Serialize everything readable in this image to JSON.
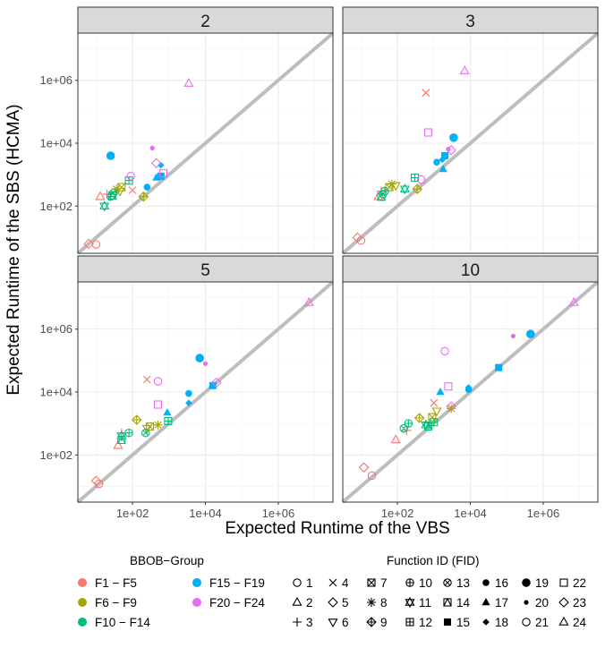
{
  "chart_data": {
    "type": "scatter",
    "xlabel": "Expected Runtime of the VBS",
    "ylabel": "Expected Runtime of the SBS (HCMA)",
    "x_log10_range": [
      0.5,
      7.5
    ],
    "y_log10_range": [
      0.5,
      7.5
    ],
    "x_ticks": [
      "1e+02",
      "1e+04",
      "1e+06"
    ],
    "y_ticks": [
      "1e+02",
      "1e+04",
      "1e+06"
    ],
    "group_colors": {
      "F1-F5": "#F8766D",
      "F6-F9": "#A3A500",
      "F10-F14": "#00BF7D",
      "F15-F19": "#00B0F6",
      "F20-F24": "#E76BF3"
    },
    "legend_groups": {
      "title": "BBOB−Group",
      "items": [
        {
          "label": "F1 − F5",
          "color": "#F8766D"
        },
        {
          "label": "F6 − F9",
          "color": "#A3A500"
        },
        {
          "label": "F10 − F14",
          "color": "#00BF7D"
        },
        {
          "label": "F15 − F19",
          "color": "#00B0F6"
        },
        {
          "label": "F20 − F24",
          "color": "#E76BF3"
        }
      ]
    },
    "legend_fids": {
      "title": "Function ID (FID)",
      "items": [
        {
          "label": "1",
          "shape": "circle-open"
        },
        {
          "label": "2",
          "shape": "triangle-open"
        },
        {
          "label": "3",
          "shape": "plus"
        },
        {
          "label": "4",
          "shape": "cross"
        },
        {
          "label": "5",
          "shape": "diamond-open"
        },
        {
          "label": "6",
          "shape": "triangle-down-open"
        },
        {
          "label": "7",
          "shape": "square-cross"
        },
        {
          "label": "8",
          "shape": "asterisk"
        },
        {
          "label": "9",
          "shape": "diamond-plus"
        },
        {
          "label": "10",
          "shape": "circle-plus"
        },
        {
          "label": "11",
          "shape": "star-of-david"
        },
        {
          "label": "12",
          "shape": "square-plus"
        },
        {
          "label": "13",
          "shape": "circle-cross"
        },
        {
          "label": "14",
          "shape": "square-triangle"
        },
        {
          "label": "15",
          "shape": "square-filled"
        },
        {
          "label": "16",
          "shape": "circle-filled"
        },
        {
          "label": "17",
          "shape": "triangle-filled"
        },
        {
          "label": "18",
          "shape": "diamond-filled"
        },
        {
          "label": "19",
          "shape": "circle-big-filled"
        },
        {
          "label": "20",
          "shape": "circle-small-filled"
        },
        {
          "label": "21",
          "shape": "circle-open"
        },
        {
          "label": "22",
          "shape": "square-open"
        },
        {
          "label": "23",
          "shape": "diamond-open"
        },
        {
          "label": "24",
          "shape": "triangle-open"
        }
      ]
    },
    "panels": [
      {
        "label": "2",
        "points": [
          {
            "fid": 1,
            "x": 10,
            "y": 6
          },
          {
            "fid": 5,
            "x": 6.3,
            "y": 6.3
          },
          {
            "fid": 2,
            "x": 13,
            "y": 200
          },
          {
            "fid": 3,
            "x": 20,
            "y": 240
          },
          {
            "fid": 4,
            "x": 100,
            "y": 320
          },
          {
            "fid": 6,
            "x": 45,
            "y": 300
          },
          {
            "fid": 7,
            "x": 50,
            "y": 400
          },
          {
            "fid": 8,
            "x": 36,
            "y": 350
          },
          {
            "fid": 9,
            "x": 200,
            "y": 200
          },
          {
            "fid": 10,
            "x": 25,
            "y": 200
          },
          {
            "fid": 11,
            "x": 17,
            "y": 100
          },
          {
            "fid": 12,
            "x": 80,
            "y": 650
          },
          {
            "fid": 13,
            "x": 30,
            "y": 260
          },
          {
            "fid": 14,
            "x": 28,
            "y": 220
          },
          {
            "fid": 15,
            "x": 600,
            "y": 900
          },
          {
            "fid": 16,
            "x": 250,
            "y": 400
          },
          {
            "fid": 17,
            "x": 450,
            "y": 800
          },
          {
            "fid": 18,
            "x": 600,
            "y": 2000
          },
          {
            "fid": 19,
            "x": 25,
            "y": 4000
          },
          {
            "fid": 20,
            "x": 350,
            "y": 7000
          },
          {
            "fid": 21,
            "x": 90,
            "y": 900
          },
          {
            "fid": 22,
            "x": 700,
            "y": 1100
          },
          {
            "fid": 23,
            "x": 450,
            "y": 2300
          },
          {
            "fid": 24,
            "x": 3500,
            "y": 800000
          }
        ]
      },
      {
        "label": "3",
        "points": [
          {
            "fid": 1,
            "x": 10,
            "y": 8
          },
          {
            "fid": 5,
            "x": 8,
            "y": 10
          },
          {
            "fid": 2,
            "x": 30,
            "y": 200
          },
          {
            "fid": 3,
            "x": 36,
            "y": 300
          },
          {
            "fid": 4,
            "x": 600,
            "y": 400000
          },
          {
            "fid": 6,
            "x": 90,
            "y": 450
          },
          {
            "fid": 7,
            "x": 60,
            "y": 400
          },
          {
            "fid": 8,
            "x": 70,
            "y": 500
          },
          {
            "fid": 9,
            "x": 350,
            "y": 350
          },
          {
            "fid": 10,
            "x": 45,
            "y": 300
          },
          {
            "fid": 11,
            "x": 160,
            "y": 350
          },
          {
            "fid": 12,
            "x": 300,
            "y": 800
          },
          {
            "fid": 13,
            "x": 40,
            "y": 240
          },
          {
            "fid": 14,
            "x": 36,
            "y": 200
          },
          {
            "fid": 15,
            "x": 2000,
            "y": 4000
          },
          {
            "fid": 16,
            "x": 1200,
            "y": 2500
          },
          {
            "fid": 17,
            "x": 1800,
            "y": 1500
          },
          {
            "fid": 18,
            "x": 1700,
            "y": 3000
          },
          {
            "fid": 19,
            "x": 3500,
            "y": 15000
          },
          {
            "fid": 20,
            "x": 2500,
            "y": 6500
          },
          {
            "fid": 21,
            "x": 450,
            "y": 700
          },
          {
            "fid": 22,
            "x": 700,
            "y": 22000
          },
          {
            "fid": 23,
            "x": 3000,
            "y": 6000
          },
          {
            "fid": 24,
            "x": 7000,
            "y": 2000000
          }
        ]
      },
      {
        "label": "5",
        "points": [
          {
            "fid": 1,
            "x": 12,
            "y": 12
          },
          {
            "fid": 5,
            "x": 10,
            "y": 15
          },
          {
            "fid": 2,
            "x": 40,
            "y": 200
          },
          {
            "fid": 3,
            "x": 50,
            "y": 500
          },
          {
            "fid": 4,
            "x": 250,
            "y": 25000
          },
          {
            "fid": 6,
            "x": 250,
            "y": 700
          },
          {
            "fid": 7,
            "x": 300,
            "y": 800
          },
          {
            "fid": 8,
            "x": 500,
            "y": 900
          },
          {
            "fid": 9,
            "x": 130,
            "y": 1300
          },
          {
            "fid": 10,
            "x": 80,
            "y": 500
          },
          {
            "fid": 11,
            "x": 50,
            "y": 400
          },
          {
            "fid": 12,
            "x": 950,
            "y": 1200
          },
          {
            "fid": 13,
            "x": 230,
            "y": 500
          },
          {
            "fid": 14,
            "x": 50,
            "y": 300
          },
          {
            "fid": 15,
            "x": 16000,
            "y": 16000
          },
          {
            "fid": 16,
            "x": 3500,
            "y": 9000
          },
          {
            "fid": 17,
            "x": 900,
            "y": 2200
          },
          {
            "fid": 18,
            "x": 3500,
            "y": 4500
          },
          {
            "fid": 19,
            "x": 7000,
            "y": 120000
          },
          {
            "fid": 20,
            "x": 10000,
            "y": 80000
          },
          {
            "fid": 21,
            "x": 500,
            "y": 22000
          },
          {
            "fid": 22,
            "x": 500,
            "y": 4000
          },
          {
            "fid": 23,
            "x": 20000,
            "y": 20000
          },
          {
            "fid": 24,
            "x": 7000000,
            "y": 7000000
          }
        ]
      },
      {
        "label": "10",
        "points": [
          {
            "fid": 1,
            "x": 20,
            "y": 22
          },
          {
            "fid": 5,
            "x": 12,
            "y": 40
          },
          {
            "fid": 2,
            "x": 90,
            "y": 300
          },
          {
            "fid": 3,
            "x": 180,
            "y": 600
          },
          {
            "fid": 4,
            "x": 1000,
            "y": 4500
          },
          {
            "fid": 6,
            "x": 1200,
            "y": 2500
          },
          {
            "fid": 7,
            "x": 900,
            "y": 1600
          },
          {
            "fid": 8,
            "x": 3000,
            "y": 3000
          },
          {
            "fid": 9,
            "x": 400,
            "y": 1500
          },
          {
            "fid": 10,
            "x": 200,
            "y": 1000
          },
          {
            "fid": 11,
            "x": 600,
            "y": 900
          },
          {
            "fid": 12,
            "x": 1000,
            "y": 1100
          },
          {
            "fid": 13,
            "x": 150,
            "y": 700
          },
          {
            "fid": 14,
            "x": 700,
            "y": 800
          },
          {
            "fid": 15,
            "x": 60000,
            "y": 60000
          },
          {
            "fid": 16,
            "x": 9000,
            "y": 12000
          },
          {
            "fid": 17,
            "x": 1500,
            "y": 10000
          },
          {
            "fid": 18,
            "x": 9000,
            "y": 14000
          },
          {
            "fid": 19,
            "x": 450000,
            "y": 700000
          },
          {
            "fid": 20,
            "x": 150000,
            "y": 600000
          },
          {
            "fid": 21,
            "x": 2000,
            "y": 200000
          },
          {
            "fid": 22,
            "x": 2500,
            "y": 15000
          },
          {
            "fid": 23,
            "x": 3000,
            "y": 3500
          },
          {
            "fid": 24,
            "x": 7000000,
            "y": 7000000
          }
        ]
      }
    ]
  }
}
